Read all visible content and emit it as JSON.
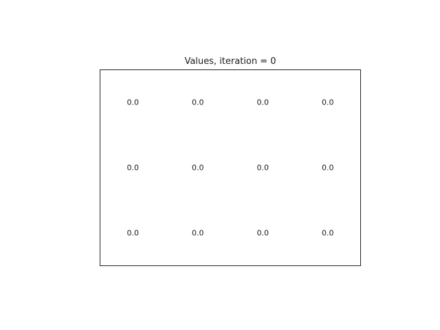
{
  "chart_data": {
    "type": "heatmap",
    "title": "Values, iteration = 0",
    "rows": 3,
    "cols": 4,
    "values": [
      [
        "0.0",
        "0.0",
        "0.0",
        "0.0"
      ],
      [
        "0.0",
        "0.0",
        "0.0",
        "0.0"
      ],
      [
        "0.0",
        "0.0",
        "0.0",
        "0.0"
      ]
    ],
    "grid": false,
    "axes_ticks": false
  }
}
